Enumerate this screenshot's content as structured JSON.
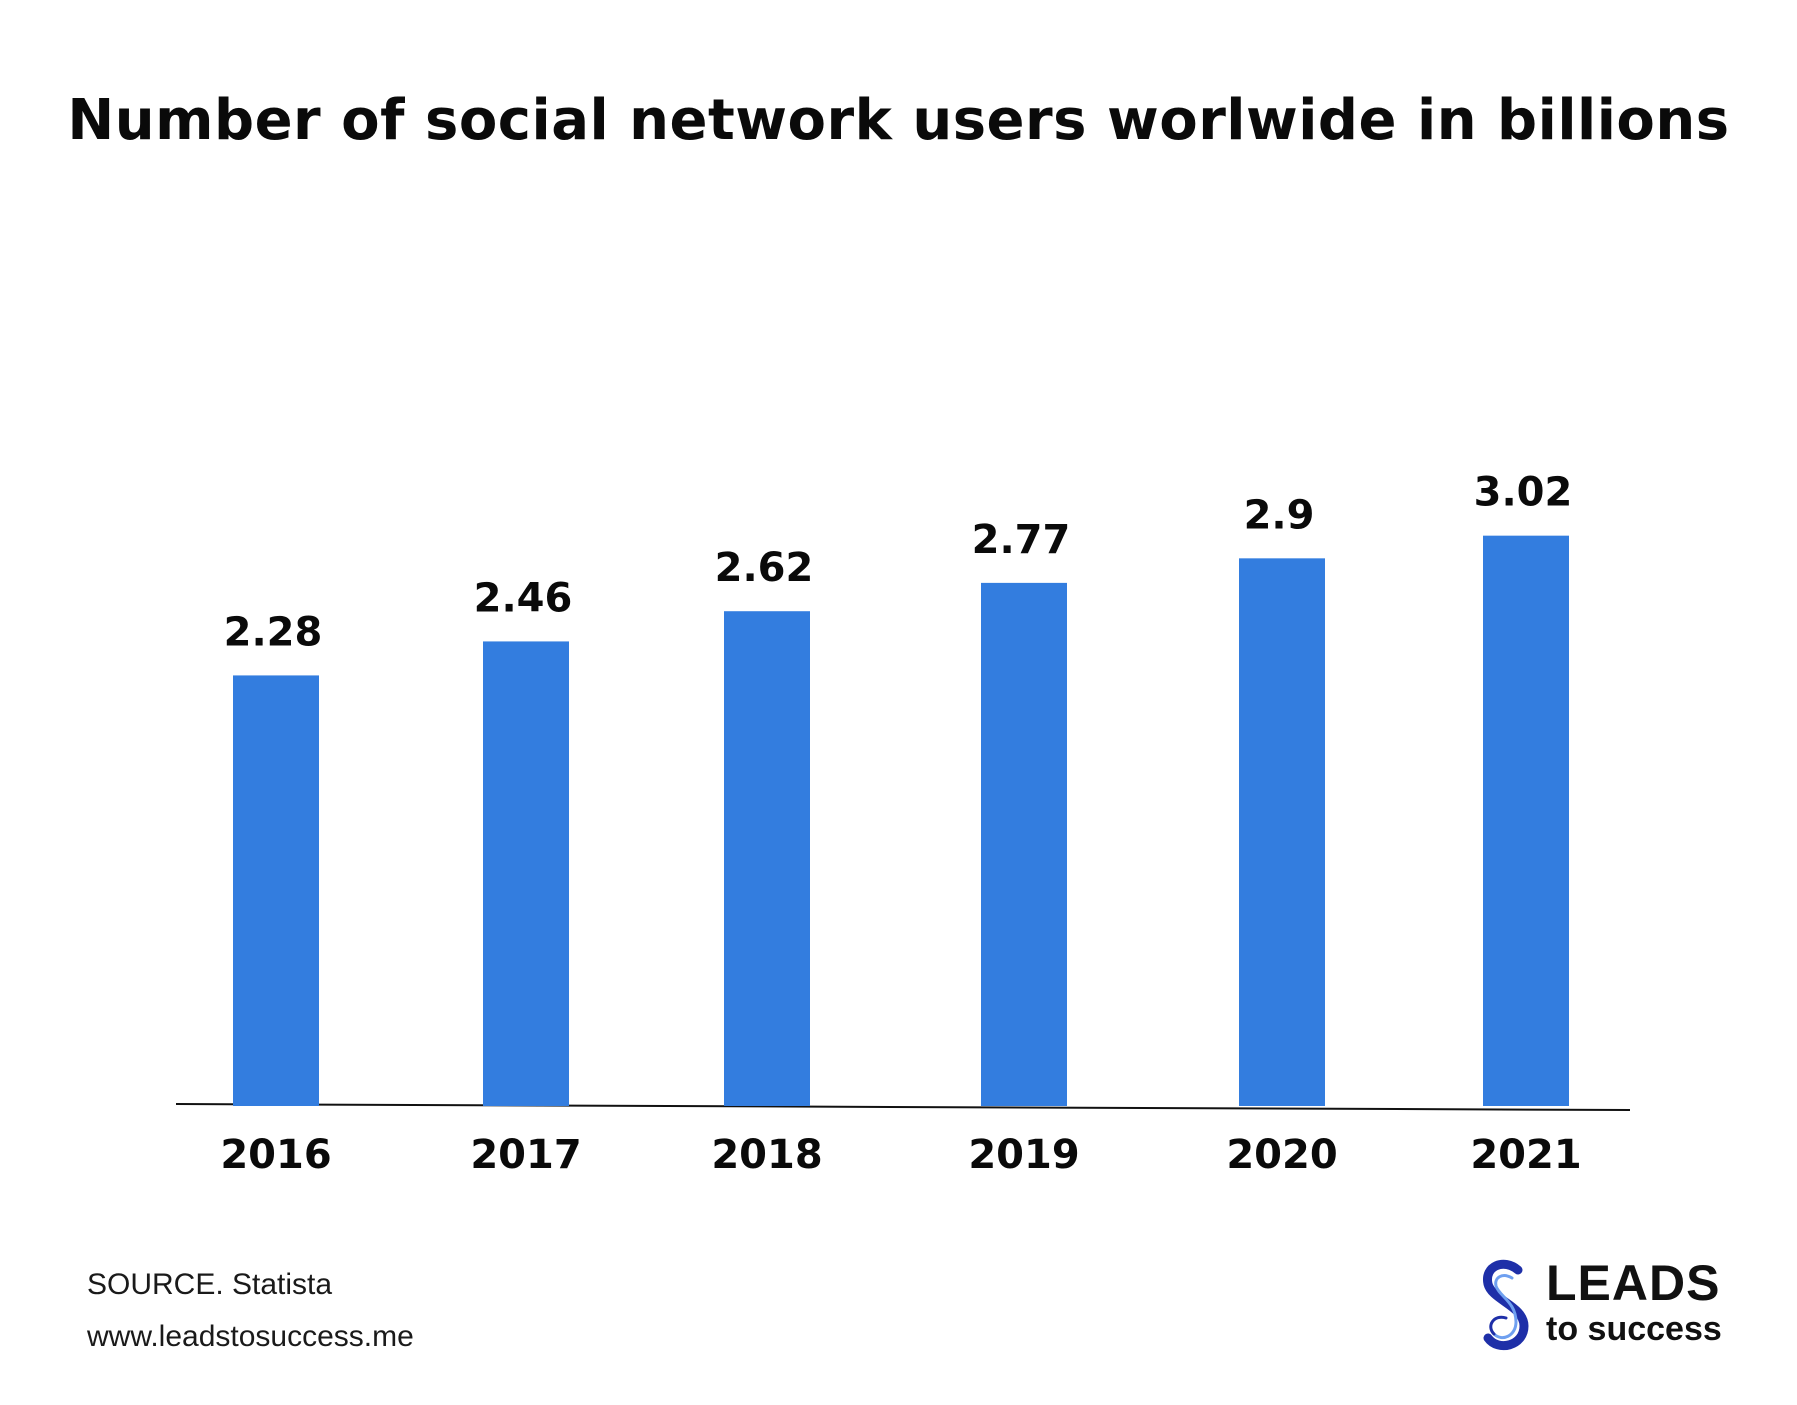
{
  "chart_data": {
    "type": "bar",
    "title": "Number of social network users worlwide in billions",
    "categories": [
      "2016",
      "2017",
      "2018",
      "2019",
      "2020",
      "2021"
    ],
    "values": [
      2.28,
      2.46,
      2.62,
      2.77,
      2.9,
      3.02
    ],
    "value_labels": [
      "2.28",
      "2.46",
      "2.62",
      "2.77",
      "2.9",
      "3.02"
    ],
    "xlabel": "",
    "ylabel": "",
    "ylim": [
      0,
      3.05
    ],
    "grid": false,
    "legend": "none",
    "bar_color": "#337DDF"
  },
  "footer": {
    "source": "SOURCE. Statista",
    "url": "www.leadstosuccess.me"
  },
  "logo": {
    "main": "LEADS",
    "sub": "to success",
    "icon": "infinity-s-logo-icon",
    "color": "#1E2FA8"
  }
}
